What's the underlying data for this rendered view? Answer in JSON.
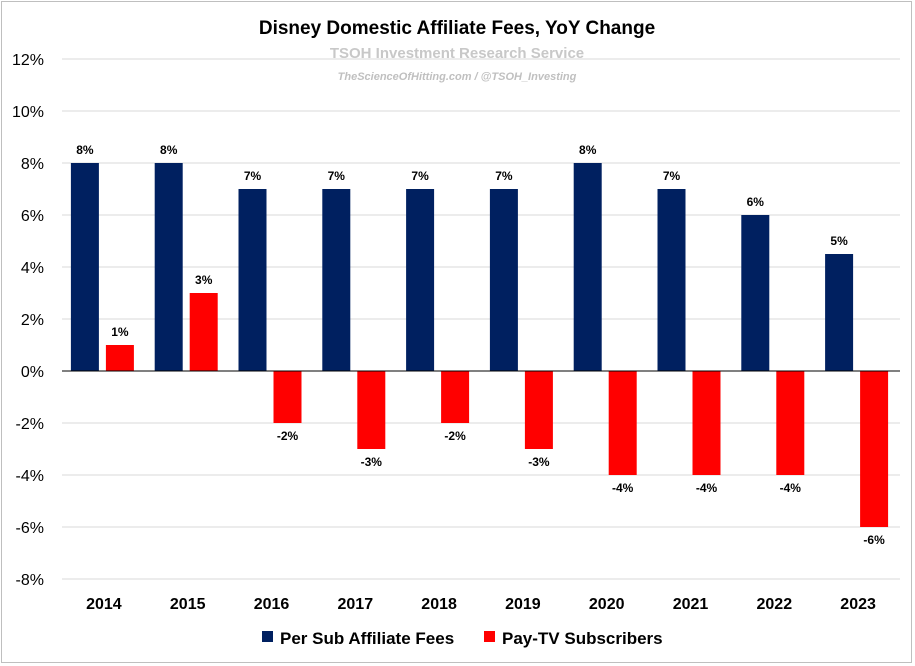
{
  "chart_data": {
    "type": "bar",
    "title": "Disney Domestic Affiliate Fees, YoY Change",
    "subtitle": "TSOH Investment Research Service",
    "credit": "TheScienceOfHitting.com / @TSOH_Investing",
    "categories": [
      "2014",
      "2015",
      "2016",
      "2017",
      "2018",
      "2019",
      "2020",
      "2021",
      "2022",
      "2023"
    ],
    "series": [
      {
        "name": "Per Sub Affiliate Fees",
        "color": "#002060",
        "values": [
          8,
          8,
          7,
          7,
          7,
          7,
          8,
          7,
          6,
          4.5
        ],
        "labels": [
          "8%",
          "8%",
          "7%",
          "7%",
          "7%",
          "7%",
          "8%",
          "7%",
          "6%",
          "5%"
        ]
      },
      {
        "name": "Pay-TV Subscribers",
        "color": "#ff0000",
        "values": [
          1,
          3,
          -2,
          -3,
          -2,
          -3,
          -4,
          -4,
          -4,
          -6
        ],
        "labels": [
          "1%",
          "3%",
          "-2%",
          "-3%",
          "-2%",
          "-3%",
          "-4%",
          "-4%",
          "-4%",
          "-6%"
        ]
      }
    ],
    "ylim": [
      -8,
      12
    ],
    "yticks": [
      {
        "value": 12,
        "label": "12%"
      },
      {
        "value": 10,
        "label": "10%"
      },
      {
        "value": 8,
        "label": "8%"
      },
      {
        "value": 6,
        "label": "6%"
      },
      {
        "value": 4,
        "label": "4%"
      },
      {
        "value": 2,
        "label": "2%"
      },
      {
        "value": 0,
        "label": "0%"
      },
      {
        "value": -2,
        "label": "-2%"
      },
      {
        "value": -4,
        "label": "-4%"
      },
      {
        "value": -6,
        "label": "-6%"
      },
      {
        "value": -8,
        "label": "-8%"
      }
    ],
    "xlabel": "",
    "ylabel": "",
    "grid": true,
    "legend_position": "bottom"
  }
}
